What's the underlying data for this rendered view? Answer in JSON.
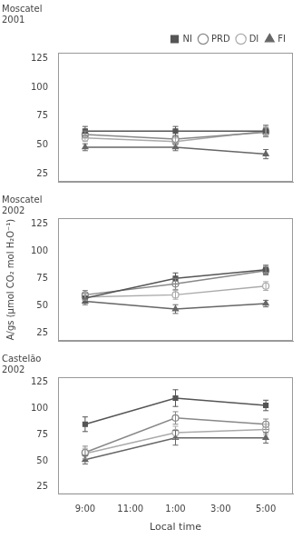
{
  "chart_data": [
    {
      "type": "line",
      "title": "Moscatel\n2001",
      "x": [
        0,
        2,
        4
      ],
      "xlim": [
        -0.6,
        4.6
      ],
      "xticks": [
        {
          "value": 0,
          "label": "9:00"
        },
        {
          "value": 1,
          "label": "11:00"
        },
        {
          "value": 2,
          "label": "1:00"
        },
        {
          "value": 3,
          "label": "3:00"
        },
        {
          "value": 4,
          "label": "5:00"
        }
      ],
      "ylim": [
        18,
        130
      ],
      "yticks": [
        25,
        50,
        75,
        100,
        125
      ],
      "grid": false,
      "legend": "upper right",
      "tick_labels": "y",
      "series": [
        {
          "name": "NI",
          "color": "#555555",
          "marker": "square",
          "values": [
            62,
            62,
            62
          ],
          "yerr": [
            4,
            4,
            5
          ]
        },
        {
          "name": "PRD",
          "color": "#888888",
          "marker": "open_circle",
          "values": [
            59,
            55,
            61
          ],
          "yerr": [
            3,
            3,
            4
          ]
        },
        {
          "name": "DI",
          "color": "#aaaaaa",
          "marker": "open_circle",
          "values": [
            56,
            53,
            62
          ],
          "yerr": [
            3,
            3,
            4
          ]
        },
        {
          "name": "FI",
          "color": "#666666",
          "marker": "triangle",
          "values": [
            48,
            48,
            42
          ],
          "yerr": [
            3,
            3,
            4
          ]
        }
      ]
    },
    {
      "type": "line",
      "title": "Moscatel\n2002",
      "ylabel": "A/gs (μmol CO₂ mol H₂O⁻¹)",
      "x": [
        0,
        2,
        4
      ],
      "xlim": [
        -0.6,
        4.6
      ],
      "xticks": [
        {
          "value": 0,
          "label": "9:00"
        },
        {
          "value": 1,
          "label": "11:00"
        },
        {
          "value": 2,
          "label": "1:00"
        },
        {
          "value": 3,
          "label": "3:00"
        },
        {
          "value": 4,
          "label": "5:00"
        }
      ],
      "ylim": [
        18,
        130
      ],
      "yticks": [
        25,
        50,
        75,
        100,
        125
      ],
      "grid": false,
      "tick_labels": "y",
      "series": [
        {
          "name": "NI",
          "color": "#555555",
          "marker": "square",
          "values": [
            57,
            75,
            83
          ],
          "yerr": [
            4,
            5,
            4
          ]
        },
        {
          "name": "PRD",
          "color": "#888888",
          "marker": "open_circle",
          "values": [
            60,
            70,
            82
          ],
          "yerr": [
            4,
            5,
            4
          ]
        },
        {
          "name": "DI",
          "color": "#aaaaaa",
          "marker": "open_circle",
          "values": [
            58,
            60,
            68
          ],
          "yerr": [
            3,
            4,
            4
          ]
        },
        {
          "name": "FI",
          "color": "#666666",
          "marker": "triangle",
          "values": [
            54,
            47,
            52
          ],
          "yerr": [
            3,
            4,
            3
          ]
        }
      ]
    },
    {
      "type": "line",
      "title": "Castelão\n2002",
      "xlabel": "Local time",
      "x": [
        0,
        2,
        4
      ],
      "xlim": [
        -0.6,
        4.6
      ],
      "xticks": [
        {
          "value": 0,
          "label": "9:00"
        },
        {
          "value": 1,
          "label": "11:00"
        },
        {
          "value": 2,
          "label": "1:00"
        },
        {
          "value": 3,
          "label": "3:00"
        },
        {
          "value": 4,
          "label": "5:00"
        }
      ],
      "ylim": [
        18,
        130
      ],
      "yticks": [
        25,
        50,
        75,
        100,
        125
      ],
      "grid": false,
      "series": [
        {
          "name": "NI",
          "color": "#555555",
          "marker": "square",
          "values": [
            85,
            110,
            103
          ],
          "yerr": [
            7,
            8,
            5
          ]
        },
        {
          "name": "PRD",
          "color": "#888888",
          "marker": "open_circle",
          "values": [
            58,
            91,
            85
          ],
          "yerr": [
            6,
            6,
            5
          ]
        },
        {
          "name": "DI",
          "color": "#aaaaaa",
          "marker": "open_circle",
          "values": [
            57,
            77,
            80
          ],
          "yerr": [
            5,
            6,
            5
          ]
        },
        {
          "name": "FI",
          "color": "#666666",
          "marker": "triangle",
          "values": [
            51,
            72,
            72
          ],
          "yerr": [
            4,
            7,
            5
          ]
        }
      ]
    }
  ]
}
